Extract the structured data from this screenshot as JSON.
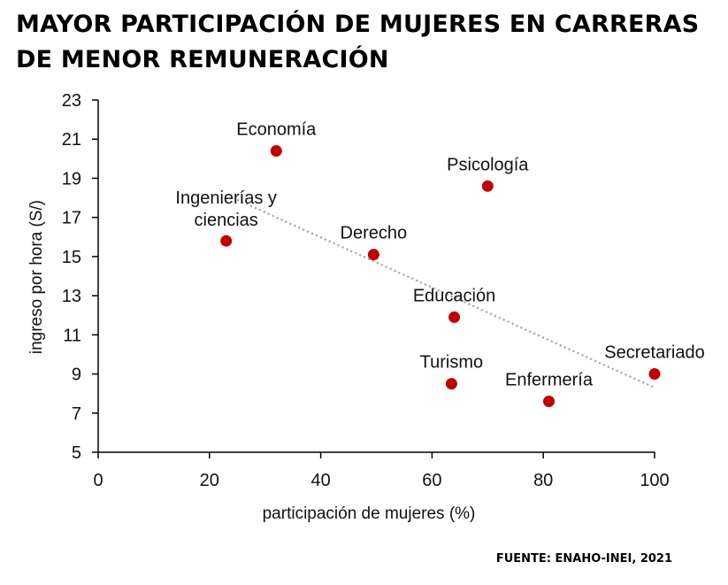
{
  "header": {
    "title_line1": "MAYOR PARTICIPACIÓN DE MUJERES EN CARRERAS",
    "title_line2": "DE MENOR REMUNERACIÓN"
  },
  "source": "FUENTE: ENAHO-INEI, 2021",
  "chart_data": {
    "type": "scatter",
    "title": "MAYOR PARTICIPACIÓN DE MUJERES EN CARRERAS DE MENOR REMUNERACIÓN",
    "xlabel": "participación de mujeres (%)",
    "ylabel": "ingreso por hora (S/)",
    "xlim": [
      0,
      100
    ],
    "ylim": [
      5,
      23
    ],
    "xticks": [
      0,
      20,
      40,
      60,
      80,
      100
    ],
    "yticks": [
      5,
      7,
      9,
      11,
      13,
      15,
      17,
      19,
      21,
      23
    ],
    "grid": false,
    "legend": "none",
    "point_color": "#c00000",
    "trend_color": "#a6a6a6",
    "points": [
      {
        "label": "Economía",
        "x": 32,
        "y": 20.4
      },
      {
        "label": "Psicología",
        "x": 70,
        "y": 18.6
      },
      {
        "label": "Ingenierías y ciencias",
        "label_lines": [
          "Ingenierías y",
          "ciencias"
        ],
        "x": 23,
        "y": 15.8
      },
      {
        "label": "Derecho",
        "x": 49.5,
        "y": 15.1
      },
      {
        "label": "Educación",
        "x": 64,
        "y": 11.9
      },
      {
        "label": "Turismo",
        "x": 63.5,
        "y": 8.5
      },
      {
        "label": "Enfermería",
        "x": 81,
        "y": 7.6
      },
      {
        "label": "Secretariado",
        "x": 100,
        "y": 9.0
      }
    ],
    "trendline": {
      "x": [
        25,
        100
      ],
      "y": [
        17.9,
        8.3
      ]
    }
  }
}
